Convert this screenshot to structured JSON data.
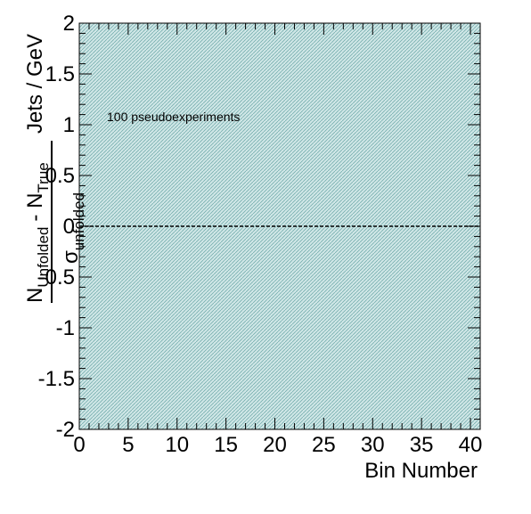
{
  "chart_data": {
    "type": "line",
    "title": "",
    "annotation": "100 pseudoexperiments",
    "xlabel": "Bin Number",
    "ylabel_frac_num_n1": "N",
    "ylabel_frac_num_sub1": "Unfolded",
    "ylabel_frac_num_mid": "- N",
    "ylabel_frac_num_sub2": "True",
    "ylabel_frac_den": "σ",
    "ylabel_frac_den_sub": "unfolded",
    "ylabel_suffix": "Jets / GeV",
    "xlim": [
      0,
      41
    ],
    "ylim": [
      -2,
      2
    ],
    "x_ticks": [
      0,
      5,
      10,
      15,
      20,
      25,
      30,
      35,
      40
    ],
    "x_tick_labels": [
      "0",
      "5",
      "10",
      "15",
      "20",
      "25",
      "30",
      "35",
      "40"
    ],
    "y_ticks": [
      -2,
      -1.5,
      -1,
      -0.5,
      0,
      0.5,
      1,
      1.5,
      2
    ],
    "y_tick_labels": [
      "-2",
      "-1.5",
      "-1",
      "-0.5",
      "0",
      "0.5",
      "1",
      "1.5",
      "2"
    ],
    "grid": false,
    "band": {
      "name": "",
      "ymin": -2,
      "ymax": 2,
      "color": "#b8d8d8"
    },
    "series": [
      {
        "name": "",
        "x": [
          0,
          41
        ],
        "y": [
          0,
          0
        ],
        "style": "dashed",
        "color": "#000000"
      }
    ],
    "colors": {
      "frame": "#000000",
      "band_hatch": "#6aa6a6"
    }
  }
}
